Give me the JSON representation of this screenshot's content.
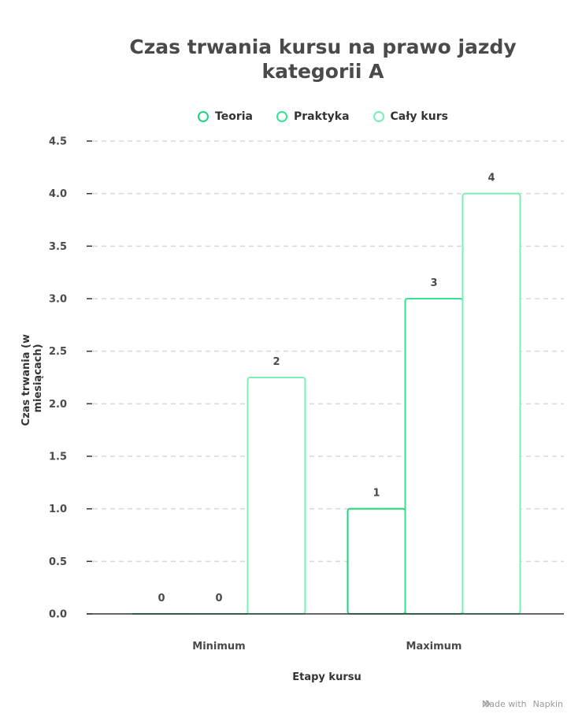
{
  "chart_data": {
    "type": "bar",
    "title": "Czas trwania kursu na prawo jazdy kategorii A",
    "title_lines": [
      "Czas trwania kursu na prawo jazdy",
      "kategorii A"
    ],
    "xlabel": "Etapy kursu",
    "ylabel": "Czas trwania (w miesiącach)",
    "ylabel_lines": [
      "Czas trwania (w",
      "miesiącach)"
    ],
    "categories": [
      "Minimum",
      "Maximum"
    ],
    "ylim": [
      0,
      4.5
    ],
    "yticks": [
      "0.0",
      "0.5",
      "1.0",
      "1.5",
      "2.0",
      "2.5",
      "3.0",
      "3.5",
      "4.0",
      "4.5"
    ],
    "series": [
      {
        "name": "Teoria",
        "values": [
          0,
          1
        ],
        "labels": [
          "0",
          "1"
        ],
        "color": "#1ed47a"
      },
      {
        "name": "Praktyka",
        "values": [
          0,
          3
        ],
        "labels": [
          "0",
          "3"
        ],
        "color": "#34e28f"
      },
      {
        "name": "Cały kurs",
        "values": [
          2.25,
          4
        ],
        "labels": [
          "2",
          "4"
        ],
        "color": "#7af0b6"
      }
    ],
    "legend_position": "top-center",
    "grid": true
  },
  "footer": {
    "made_with": "Made with",
    "brand": "Napkin",
    "icon": "napkin-logo-icon"
  }
}
